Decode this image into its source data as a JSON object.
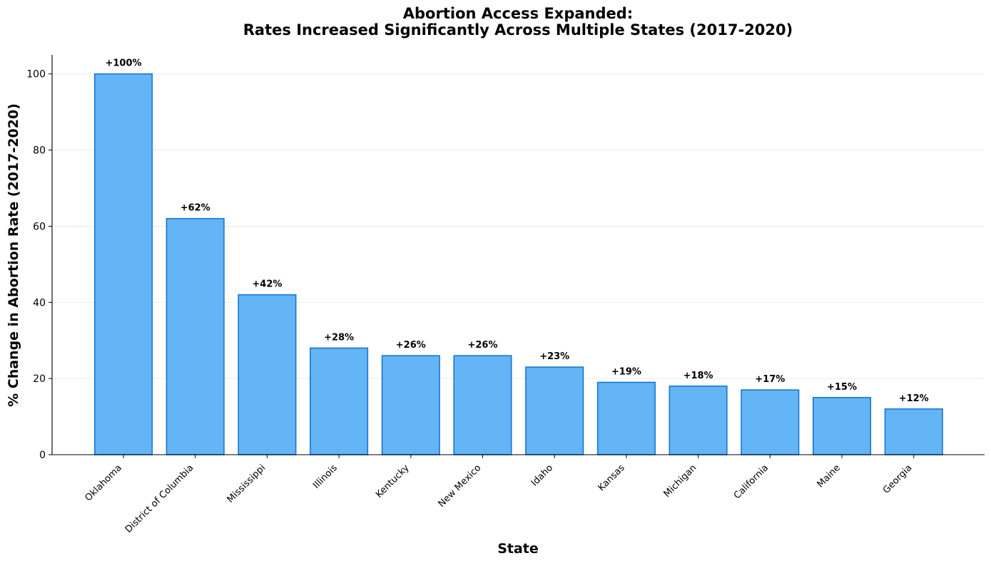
{
  "chart_data": {
    "type": "bar",
    "title_line1": "Abortion Access Expanded:",
    "title_line2": "Rates Increased Significantly Across Multiple States (2017-2020)",
    "xlabel": "State",
    "ylabel": "% Change in Abortion Rate (2017-2020)",
    "ylim": [
      0,
      105
    ],
    "yticks": [
      0,
      20,
      40,
      60,
      80,
      100
    ],
    "grid": "horizontal",
    "categories": [
      "Oklahoma",
      "District of Columbia",
      "Mississippi",
      "Illinois",
      "Kentucky",
      "New Mexico",
      "Idaho",
      "Kansas",
      "Michigan",
      "California",
      "Maine",
      "Georgia"
    ],
    "values": [
      100,
      62,
      42,
      28,
      26,
      26,
      23,
      19,
      18,
      17,
      15,
      12
    ],
    "data_labels": [
      "+100%",
      "+62%",
      "+42%",
      "+28%",
      "+26%",
      "+26%",
      "+23%",
      "+19%",
      "+18%",
      "+17%",
      "+15%",
      "+12%"
    ],
    "colors": {
      "bar_fill": "#64b5f6",
      "bar_edge": "#1976d2",
      "axis": "#000000",
      "grid": "#e6e6e6"
    }
  }
}
